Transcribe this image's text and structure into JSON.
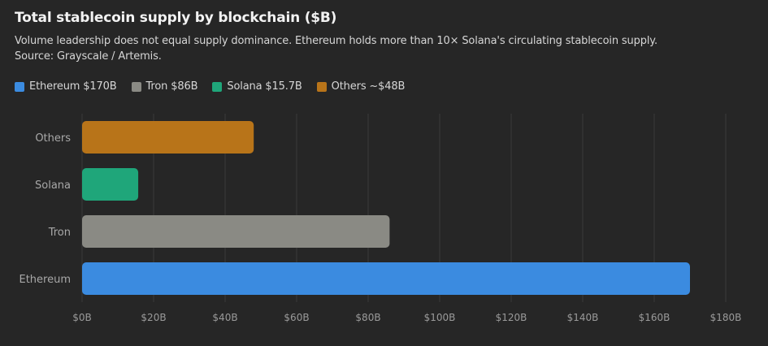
{
  "header": {
    "title": "Total stablecoin supply by blockchain ($B)",
    "subtitle_line1": "Volume leadership does not equal supply dominance. Ethereum holds more than 10× Solana's circulating stablecoin supply.",
    "subtitle_line2": "Source: Grayscale / Artemis."
  },
  "legend": [
    {
      "label": "Ethereum $170B",
      "color": "#3b8be0"
    },
    {
      "label": "Tron $86B",
      "color": "#8a8a84"
    },
    {
      "label": "Solana $15.7B",
      "color": "#1fa67a"
    },
    {
      "label": "Others ~$48B",
      "color": "#b87419"
    }
  ],
  "chart_data": {
    "type": "bar",
    "orientation": "horizontal",
    "title": "Total stablecoin supply by blockchain ($B)",
    "categories": [
      "Others",
      "Solana",
      "Tron",
      "Ethereum"
    ],
    "values": [
      48,
      15.7,
      86,
      170
    ],
    "colors": [
      "#b87419",
      "#1fa67a",
      "#8a8a84",
      "#3b8be0"
    ],
    "xlim": [
      0,
      180
    ],
    "x_ticks": [
      0,
      20,
      40,
      60,
      80,
      100,
      120,
      140,
      160,
      180
    ],
    "x_tick_labels": [
      "$0B",
      "$20B",
      "$40B",
      "$60B",
      "$80B",
      "$100B",
      "$120B",
      "$140B",
      "$160B",
      "$180B"
    ],
    "xlabel": "",
    "ylabel": "",
    "grid": true,
    "legend_position": "top-left"
  }
}
